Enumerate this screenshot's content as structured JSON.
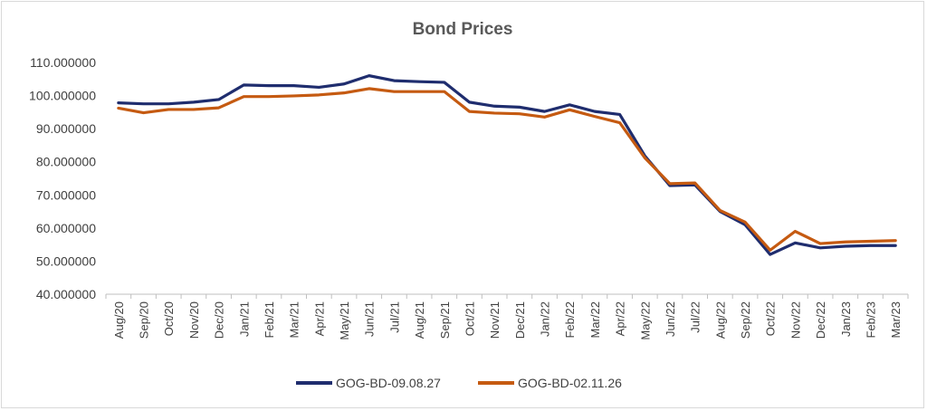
{
  "chart_data": {
    "type": "line",
    "title": "Bond Prices",
    "xlabel": "",
    "ylabel": "",
    "categories": [
      "Aug/20",
      "Sep/20",
      "Oct/20",
      "Nov/20",
      "Dec/20",
      "Jan/21",
      "Feb/21",
      "Mar/21",
      "Apr/21",
      "May/21",
      "Jun/21",
      "Jul/21",
      "Aug/21",
      "Sep/21",
      "Oct/21",
      "Nov/21",
      "Dec/21",
      "Jan/22",
      "Feb/22",
      "Mar/22",
      "Apr/22",
      "May/22",
      "Jun/22",
      "Jul/22",
      "Aug/22",
      "Sep/22",
      "Oct/22",
      "Nov/22",
      "Dec/22",
      "Jan/23",
      "Feb/23",
      "Mar/23"
    ],
    "ylim": [
      40,
      110
    ],
    "yticks": [
      40,
      50,
      60,
      70,
      80,
      90,
      100,
      110
    ],
    "ytick_labels": [
      "40.000000",
      "50.000000",
      "60.000000",
      "70.000000",
      "80.000000",
      "90.000000",
      "100.000000",
      "110.000000"
    ],
    "grid": false,
    "legend_position": "bottom",
    "series": [
      {
        "name": "GOG-BD-09.08.27",
        "color": "#1f2d6e",
        "values": [
          97.8,
          97.5,
          97.5,
          98.0,
          98.8,
          103.2,
          103.0,
          103.0,
          102.5,
          103.5,
          106.0,
          104.5,
          104.2,
          104.0,
          98.0,
          96.8,
          96.5,
          95.2,
          97.2,
          95.2,
          94.3,
          81.8,
          72.8,
          73.0,
          65.0,
          61.0,
          52.0,
          55.5,
          54.0,
          54.5,
          54.7,
          54.7
        ]
      },
      {
        "name": "GOG-BD-02.11.26",
        "color": "#c55a11",
        "values": [
          96.2,
          94.8,
          95.8,
          95.8,
          96.3,
          99.7,
          99.7,
          99.9,
          100.2,
          100.8,
          102.1,
          101.2,
          101.2,
          101.2,
          95.2,
          94.7,
          94.5,
          93.5,
          95.7,
          93.7,
          91.8,
          81.2,
          73.4,
          73.6,
          65.3,
          61.8,
          53.3,
          59.0,
          55.3,
          55.8,
          56.0,
          56.2
        ]
      }
    ]
  }
}
